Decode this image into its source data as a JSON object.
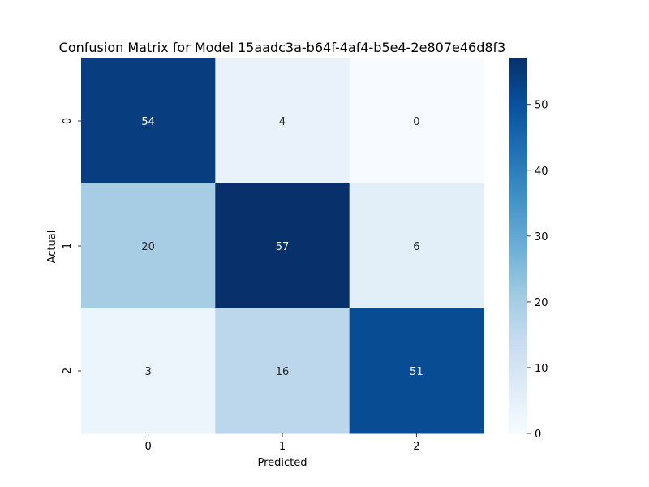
{
  "chart_data": {
    "type": "heatmap",
    "title": "Confusion Matrix for Model 15aadc3a-b64f-4af4-b5e4-2e807e46d8f3",
    "xlabel": "Predicted",
    "ylabel": "Actual",
    "x_categories": [
      "0",
      "1",
      "2"
    ],
    "y_categories": [
      "0",
      "1",
      "2"
    ],
    "values": [
      [
        54,
        4,
        0
      ],
      [
        20,
        57,
        6
      ],
      [
        3,
        16,
        51
      ]
    ],
    "colormap": "Blues",
    "color_range": [
      0,
      57
    ],
    "colorbar_ticks": [
      "0",
      "10",
      "20",
      "30",
      "40",
      "50"
    ],
    "annotated": true,
    "grid": false
  }
}
